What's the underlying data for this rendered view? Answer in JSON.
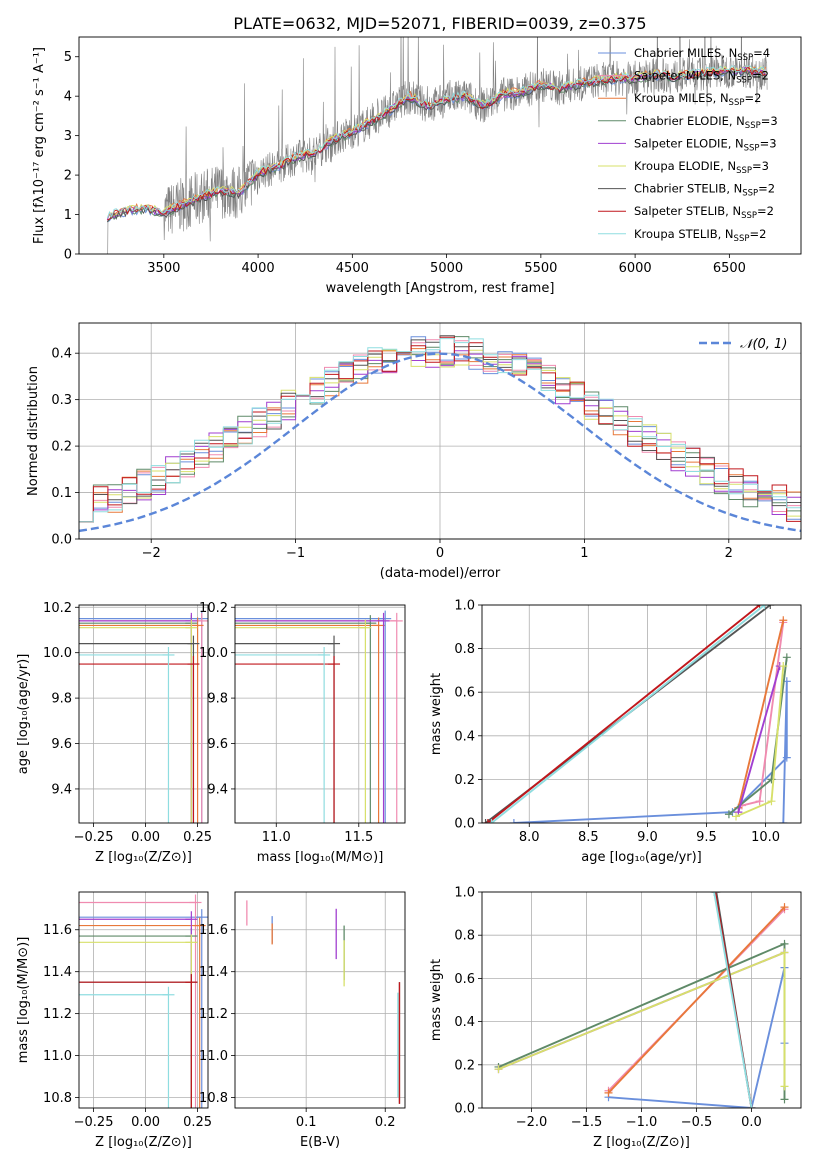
{
  "figure_title": "PLATE=0632, MJD=52071, FIBERID=0039, z=0.375",
  "colors": {
    "chabrier_miles": "#6a8fdc",
    "salpeter_miles": "#f08bb0",
    "kroupa_miles": "#e8783a",
    "chabrier_elodie": "#5f8a68",
    "salpeter_elodie": "#a13fd0",
    "kroupa_elodie": "#d7e06a",
    "chabrier_stelib": "#555555",
    "salpeter_stelib": "#c0171c",
    "kroupa_stelib": "#8fdde0",
    "normal": "#5b86d8",
    "data": "#808080",
    "grid": "#b0b0b0"
  },
  "chart_data": [
    {
      "id": "spectrum",
      "type": "line",
      "xlabel": "wavelength [Angstrom, rest frame]",
      "ylabel": "Flux [fλ10⁻¹⁷ erg cm⁻² s⁻¹ A⁻¹]",
      "xlim": [
        3050,
        6880
      ],
      "ylim": [
        0,
        5.5
      ],
      "xticks": [
        3500,
        4000,
        4500,
        5000,
        5500,
        6000,
        6500
      ],
      "yticks": [
        0,
        1,
        2,
        3,
        4,
        5
      ],
      "grid": false,
      "legend_position": "top-right",
      "legend": [
        "Chabrier MILES, N_SSP=4",
        "Salpeter MILES, N_SSP=2",
        "Kroupa MILES, N_SSP=2",
        "Chabrier ELODIE, N_SSP=3",
        "Salpeter ELODIE, N_SSP=3",
        "Kroupa ELODIE, N_SSP=3",
        "Chabrier STELIB, N_SSP=2",
        "Salpeter STELIB, N_SSP=2",
        "Kroupa STELIB, N_SSP=2"
      ],
      "x_start": 3200,
      "x_end": 6700,
      "continuum": [
        [
          3200,
          0.95
        ],
        [
          3300,
          1.1
        ],
        [
          3400,
          1.15
        ],
        [
          3500,
          1.05
        ],
        [
          3600,
          1.25
        ],
        [
          3700,
          1.45
        ],
        [
          3800,
          1.6
        ],
        [
          3900,
          1.55
        ],
        [
          4000,
          2.05
        ],
        [
          4100,
          2.2
        ],
        [
          4200,
          2.45
        ],
        [
          4300,
          2.55
        ],
        [
          4400,
          2.9
        ],
        [
          4500,
          3.1
        ],
        [
          4600,
          3.35
        ],
        [
          4700,
          3.65
        ],
        [
          4800,
          4.0
        ],
        [
          4900,
          3.75
        ],
        [
          5000,
          3.9
        ],
        [
          5100,
          4.0
        ],
        [
          5200,
          3.75
        ],
        [
          5300,
          4.05
        ],
        [
          5400,
          4.1
        ],
        [
          5500,
          4.3
        ],
        [
          5600,
          4.2
        ],
        [
          5700,
          4.3
        ],
        [
          5800,
          4.4
        ],
        [
          5900,
          4.45
        ],
        [
          6000,
          4.45
        ],
        [
          6100,
          4.55
        ],
        [
          6200,
          4.5
        ],
        [
          6300,
          4.55
        ],
        [
          6400,
          4.6
        ],
        [
          6500,
          4.65
        ],
        [
          6600,
          4.65
        ],
        [
          6700,
          4.6
        ]
      ]
    },
    {
      "id": "residuals",
      "type": "histogram",
      "xlabel": "(data-model)/error",
      "ylabel": "Normed distribution",
      "xlim": [
        -2.5,
        2.5
      ],
      "ylim": [
        0,
        0.465
      ],
      "xticks": [
        -2,
        -1,
        0,
        1,
        2
      ],
      "yticks": [
        0.0,
        0.1,
        0.2,
        0.3,
        0.4
      ],
      "grid": true,
      "legend_position": "top-right",
      "legend": [
        "𝒩(0, 1)"
      ],
      "bins": 50
    },
    {
      "id": "age_vs_Z",
      "type": "scatter",
      "xlabel": "Z [log₁₀(Z/Z⊙)]",
      "ylabel": "age  [log₁₀(age/yr)]",
      "xlim": [
        -0.32,
        0.3
      ],
      "ylim": [
        9.25,
        10.21
      ],
      "xticks": [
        -0.25,
        0.0,
        0.25
      ],
      "yticks": [
        9.4,
        9.6,
        9.8,
        10.0,
        10.2
      ],
      "grid": true,
      "points": [
        {
          "model": "chabrier_miles",
          "x": 0.27,
          "y": 10.15
        },
        {
          "model": "salpeter_miles",
          "x": 0.27,
          "y": 10.14
        },
        {
          "model": "kroupa_miles",
          "x": 0.25,
          "y": 10.12
        },
        {
          "model": "chabrier_elodie",
          "x": 0.22,
          "y": 10.13
        },
        {
          "model": "salpeter_elodie",
          "x": 0.22,
          "y": 10.14
        },
        {
          "model": "kroupa_elodie",
          "x": 0.22,
          "y": 10.11
        },
        {
          "model": "chabrier_stelib",
          "x": 0.23,
          "y": 10.04
        },
        {
          "model": "salpeter_stelib",
          "x": 0.23,
          "y": 9.95
        },
        {
          "model": "kroupa_stelib",
          "x": 0.11,
          "y": 9.99
        }
      ]
    },
    {
      "id": "age_vs_mass",
      "type": "scatter",
      "xlabel": "mass [log₁₀(M/M⊙)]",
      "ylabel": "",
      "xlim": [
        10.75,
        11.78
      ],
      "ylim": [
        9.25,
        10.21
      ],
      "xticks": [
        11.0,
        11.5
      ],
      "yticks": [
        9.4,
        9.6,
        9.8,
        10.0,
        10.2
      ],
      "grid": true,
      "points": [
        {
          "model": "chabrier_miles",
          "x": 11.66,
          "y": 10.15
        },
        {
          "model": "salpeter_miles",
          "x": 11.73,
          "y": 10.14
        },
        {
          "model": "kroupa_miles",
          "x": 11.62,
          "y": 10.12
        },
        {
          "model": "chabrier_elodie",
          "x": 11.57,
          "y": 10.13
        },
        {
          "model": "salpeter_elodie",
          "x": 11.65,
          "y": 10.14
        },
        {
          "model": "kroupa_elodie",
          "x": 11.54,
          "y": 10.11
        },
        {
          "model": "chabrier_stelib",
          "x": 11.35,
          "y": 10.04
        },
        {
          "model": "salpeter_stelib",
          "x": 11.35,
          "y": 9.95
        },
        {
          "model": "kroupa_stelib",
          "x": 11.29,
          "y": 9.99
        }
      ]
    },
    {
      "id": "weight_vs_age",
      "type": "line",
      "xlabel": "age  [log₁₀(age/yr)]",
      "ylabel": "mass weight",
      "xlim": [
        7.6,
        10.3
      ],
      "ylim": [
        0,
        1.0
      ],
      "xticks": [
        8.0,
        8.5,
        9.0,
        9.5,
        10.0
      ],
      "yticks": [
        0.0,
        0.2,
        0.4,
        0.6,
        0.8,
        1.0
      ],
      "grid": true,
      "series": [
        {
          "model": "chabrier_miles",
          "x": [
            7.87,
            9.72,
            10.18,
            10.18,
            10.15
          ],
          "y": [
            0.0,
            0.05,
            0.3,
            0.65,
            0.0
          ]
        },
        {
          "model": "salpeter_miles",
          "x": [
            9.8,
            9.95,
            10.15
          ],
          "y": [
            0.08,
            0.1,
            0.92
          ]
        },
        {
          "model": "kroupa_miles",
          "x": [
            9.77,
            10.15
          ],
          "y": [
            0.07,
            0.93
          ]
        },
        {
          "model": "chabrier_elodie",
          "x": [
            9.69,
            10.05,
            10.18
          ],
          "y": [
            0.04,
            0.2,
            0.76
          ]
        },
        {
          "model": "salpeter_elodie",
          "x": [
            9.77,
            10.12
          ],
          "y": [
            0.05,
            0.72
          ]
        },
        {
          "model": "kroupa_elodie",
          "x": [
            9.75,
            10.05,
            10.15
          ],
          "y": [
            0.03,
            0.1,
            0.72
          ]
        },
        {
          "model": "chabrier_stelib",
          "x": [
            7.63,
            10.04
          ],
          "y": [
            0.0,
            1.0
          ]
        },
        {
          "model": "salpeter_stelib",
          "x": [
            7.65,
            9.95
          ],
          "y": [
            0.0,
            1.0
          ]
        },
        {
          "model": "kroupa_stelib",
          "x": [
            7.68,
            9.99
          ],
          "y": [
            0.0,
            1.0
          ]
        }
      ]
    },
    {
      "id": "mass_vs_Z",
      "type": "scatter",
      "xlabel": "Z [log₁₀(Z/Z⊙)]",
      "ylabel": "mass [log₁₀(M/M⊙)]",
      "xlim": [
        -0.32,
        0.3
      ],
      "ylim": [
        10.75,
        11.78
      ],
      "xticks": [
        -0.25,
        0.0,
        0.25
      ],
      "yticks": [
        10.8,
        11.0,
        11.2,
        11.4,
        11.6
      ],
      "grid": true,
      "points": [
        {
          "model": "chabrier_miles",
          "x": 0.27,
          "y": 11.66
        },
        {
          "model": "salpeter_miles",
          "x": 0.24,
          "y": 11.73
        },
        {
          "model": "kroupa_miles",
          "x": 0.26,
          "y": 11.62
        },
        {
          "model": "chabrier_elodie",
          "x": 0.22,
          "y": 11.57
        },
        {
          "model": "salpeter_elodie",
          "x": 0.22,
          "y": 11.65
        },
        {
          "model": "kroupa_elodie",
          "x": 0.22,
          "y": 11.54
        },
        {
          "model": "chabrier_stelib",
          "x": 0.22,
          "y": 11.35
        },
        {
          "model": "salpeter_stelib",
          "x": 0.22,
          "y": 11.35
        },
        {
          "model": "kroupa_stelib",
          "x": 0.11,
          "y": 11.29
        }
      ]
    },
    {
      "id": "mass_vs_ebv",
      "type": "scatter",
      "xlabel": "E(B-V)",
      "ylabel": "",
      "xlim": [
        0.01,
        0.225
      ],
      "ylim": [
        10.75,
        11.78
      ],
      "xticks": [
        0.1,
        0.2
      ],
      "yticks": [
        10.8,
        11.0,
        11.2,
        11.4,
        11.6
      ],
      "grid": true,
      "points": [
        {
          "model": "chabrier_miles",
          "x": 0.057,
          "y": 11.6,
          "h": 0.13
        },
        {
          "model": "salpeter_miles",
          "x": 0.025,
          "y": 11.68,
          "h": 0.12
        },
        {
          "model": "kroupa_miles",
          "x": 0.057,
          "y": 11.58,
          "h": 0.1
        },
        {
          "model": "chabrier_elodie",
          "x": 0.148,
          "y": 11.49,
          "h": 0.26
        },
        {
          "model": "salpeter_elodie",
          "x": 0.138,
          "y": 11.58,
          "h": 0.24
        },
        {
          "model": "kroupa_elodie",
          "x": 0.148,
          "y": 11.44,
          "h": 0.22
        },
        {
          "model": "chabrier_stelib",
          "x": 0.218,
          "y": 11.06,
          "h": 0.58
        },
        {
          "model": "salpeter_stelib",
          "x": 0.218,
          "y": 11.06,
          "h": 0.58
        },
        {
          "model": "kroupa_stelib",
          "x": 0.216,
          "y": 11.05,
          "h": 0.5
        }
      ]
    },
    {
      "id": "weight_vs_Z",
      "type": "line",
      "xlabel": "Z [log₁₀(Z/Z⊙)]",
      "ylabel": "mass weight",
      "xlim": [
        -2.45,
        0.45
      ],
      "ylim": [
        0,
        1.0
      ],
      "xticks": [
        -2.0,
        -1.5,
        -1.0,
        -0.5,
        0.0
      ],
      "yticks": [
        0.0,
        0.2,
        0.4,
        0.6,
        0.8,
        1.0
      ],
      "grid": true,
      "series": [
        {
          "model": "chabrier_miles",
          "x": [
            -1.3,
            0.0,
            0.3,
            0.3
          ],
          "y": [
            0.05,
            0.0,
            0.65,
            0.3
          ]
        },
        {
          "model": "salpeter_miles",
          "x": [
            -1.3,
            0.3
          ],
          "y": [
            0.08,
            0.92
          ]
        },
        {
          "model": "kroupa_miles",
          "x": [
            -1.3,
            0.3
          ],
          "y": [
            0.07,
            0.93
          ]
        },
        {
          "model": "chabrier_elodie",
          "x": [
            -2.3,
            0.3,
            0.3
          ],
          "y": [
            0.19,
            0.76,
            0.04
          ]
        },
        {
          "model": "salpeter_elodie",
          "x": [
            -2.3,
            0.3
          ],
          "y": [
            0.18,
            0.72
          ]
        },
        {
          "model": "kroupa_elodie",
          "x": [
            -2.3,
            0.3,
            0.3
          ],
          "y": [
            0.18,
            0.72,
            0.1
          ]
        },
        {
          "model": "chabrier_stelib",
          "x": [
            -0.32,
            0.0
          ],
          "y": [
            1.0,
            0.0
          ]
        },
        {
          "model": "salpeter_stelib",
          "x": [
            -0.33,
            0.0
          ],
          "y": [
            1.0,
            0.0
          ]
        },
        {
          "model": "kroupa_stelib",
          "x": [
            -0.34,
            0.0
          ],
          "y": [
            1.0,
            0.0
          ]
        }
      ]
    }
  ]
}
